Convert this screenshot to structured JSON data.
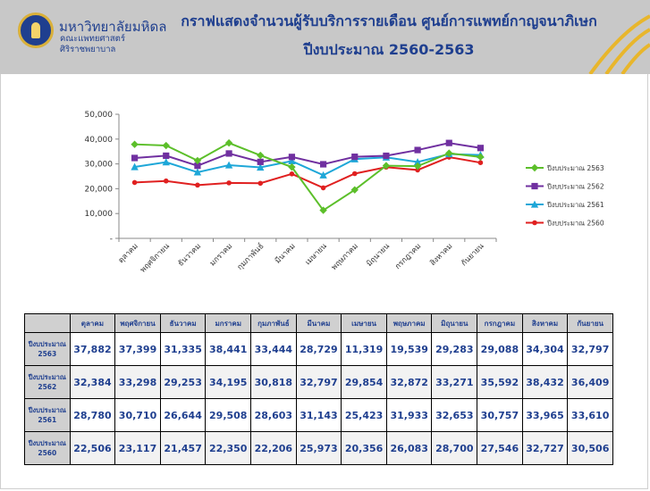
{
  "header": {
    "university": "มหาวิทยาลัยมหิดล",
    "faculty_line1": "คณะแพทยศาสตร์",
    "faculty_line2": "ศิริราชพยาบาล",
    "title_line1": "กราฟแสดงจำนวนผู้รับบริการรายเดือน ศูนย์การแพทย์กาญจนาภิเษก",
    "title_line2": "ปีงบประมาณ 2560-2563",
    "brand_color": "#1f3f8f",
    "accent_color": "#d9b03a"
  },
  "chart_data": {
    "type": "line",
    "title": "",
    "xlabel": "",
    "ylabel": "",
    "ylim": [
      0,
      50000
    ],
    "y_ticks": [
      0,
      10000,
      20000,
      30000,
      40000,
      50000
    ],
    "y_tick_labels": [
      "-",
      "10,000",
      "20,000",
      "30,000",
      "40,000",
      "50,000"
    ],
    "grid": false,
    "legend": "right",
    "categories": [
      "ตุลาคม",
      "พฤศจิกายน",
      "ธันวาคม",
      "มกราคม",
      "กุมภาพันธ์",
      "มีนาคม",
      "เมษายน",
      "พฤษภาคม",
      "มิถุนายน",
      "กรกฎาคม",
      "สิงหาคม",
      "กันยายน"
    ],
    "series": [
      {
        "name": "ปีงบประมาณ 2563",
        "color": "#5cbf2a",
        "marker": "diamond",
        "values": [
          37882,
          37399,
          31335,
          38441,
          33444,
          28729,
          11319,
          19539,
          29283,
          29088,
          34304,
          32797
        ]
      },
      {
        "name": "ปีงบประมาณ 2562",
        "color": "#7030a0",
        "marker": "square",
        "values": [
          32384,
          33298,
          29253,
          34195,
          30818,
          32797,
          29854,
          32872,
          33271,
          35592,
          38432,
          36409
        ]
      },
      {
        "name": "ปีงบประมาณ 2561",
        "color": "#1ea7d8",
        "marker": "triangle",
        "values": [
          28780,
          30710,
          26644,
          29508,
          28603,
          31143,
          25423,
          31933,
          32653,
          30757,
          33965,
          33610
        ]
      },
      {
        "name": "ปีงบประมาณ 2560",
        "color": "#e02020",
        "marker": "circle",
        "values": [
          22506,
          23117,
          21457,
          22350,
          22206,
          25973,
          20356,
          26083,
          28700,
          27546,
          32727,
          30506
        ]
      }
    ]
  },
  "table": {
    "corner": "",
    "columns": [
      "ตุลาคม",
      "พฤศจิกายน",
      "ธันวาคม",
      "มกราคม",
      "กุมภาพันธ์",
      "มีนาคม",
      "เมษายน",
      "พฤษภาคม",
      "มิถุนายน",
      "กรกฎาคม",
      "สิงหาคม",
      "กันยายน"
    ],
    "rows": [
      {
        "label1": "ปีงบประมาณ",
        "label2": "2563",
        "cells": [
          "37,882",
          "37,399",
          "31,335",
          "38,441",
          "33,444",
          "28,729",
          "11,319",
          "19,539",
          "29,283",
          "29,088",
          "34,304",
          "32,797"
        ]
      },
      {
        "label1": "ปีงบประมาณ",
        "label2": "2562",
        "cells": [
          "32,384",
          "33,298",
          "29,253",
          "34,195",
          "30,818",
          "32,797",
          "29,854",
          "32,872",
          "33,271",
          "35,592",
          "38,432",
          "36,409"
        ]
      },
      {
        "label1": "ปีงบประมาณ",
        "label2": "2561",
        "cells": [
          "28,780",
          "30,710",
          "26,644",
          "29,508",
          "28,603",
          "31,143",
          "25,423",
          "31,933",
          "32,653",
          "30,757",
          "33,965",
          "33,610"
        ]
      },
      {
        "label1": "ปีงบประมาณ",
        "label2": "2560",
        "cells": [
          "22,506",
          "23,117",
          "21,457",
          "22,350",
          "22,206",
          "25,973",
          "20,356",
          "26,083",
          "28,700",
          "27,546",
          "32,727",
          "30,506"
        ]
      }
    ]
  }
}
